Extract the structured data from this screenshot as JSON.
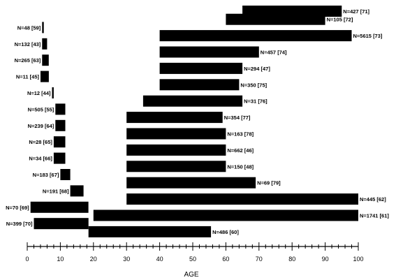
{
  "chart_data": {
    "type": "bar",
    "orientation": "horizontal-range",
    "xlabel": "AGE",
    "xlim": [
      0,
      100
    ],
    "x_ticks": [
      0,
      10,
      20,
      30,
      40,
      50,
      60,
      70,
      80,
      90,
      100
    ],
    "grid": false,
    "bars": [
      {
        "start": 65,
        "end": 95,
        "label": "N=427 [71]",
        "label_side": "right"
      },
      {
        "start": 60,
        "end": 90,
        "label": "N=105 [72]",
        "label_side": "right"
      },
      {
        "start": 4.5,
        "end": 5,
        "label": "N=48 [59]",
        "label_side": "left"
      },
      {
        "start": 40,
        "end": 98,
        "label": "N=5615 [73]",
        "label_side": "right"
      },
      {
        "start": 4.5,
        "end": 6,
        "label": "N=132 [43]",
        "label_side": "left"
      },
      {
        "start": 40,
        "end": 70,
        "label": "N=457 [74]",
        "label_side": "right"
      },
      {
        "start": 4.5,
        "end": 6.5,
        "label": "N=265 [63]",
        "label_side": "left"
      },
      {
        "start": 40,
        "end": 65,
        "label": "N=294 [47]",
        "label_side": "right"
      },
      {
        "start": 4,
        "end": 6.5,
        "label": "N=11 [45]",
        "label_side": "left"
      },
      {
        "start": 40,
        "end": 64,
        "label": "N=350 [75]",
        "label_side": "right"
      },
      {
        "start": 7.5,
        "end": 8,
        "label": "N=12 [44]",
        "label_side": "left"
      },
      {
        "start": 35,
        "end": 65,
        "label": "N=31 [76]",
        "label_side": "right"
      },
      {
        "start": 8.5,
        "end": 11.5,
        "label": "N=505 [55]",
        "label_side": "left"
      },
      {
        "start": 30,
        "end": 59,
        "label": "N=354 [77]",
        "label_side": "right"
      },
      {
        "start": 8.5,
        "end": 11.5,
        "label": "N=239 [64]",
        "label_side": "left"
      },
      {
        "start": 30,
        "end": 60,
        "label": "N=163 [78]",
        "label_side": "right"
      },
      {
        "start": 8,
        "end": 11.5,
        "label": "N=28 [65]",
        "label_side": "left"
      },
      {
        "start": 30,
        "end": 60,
        "label": "N=662 [46]",
        "label_side": "right"
      },
      {
        "start": 8,
        "end": 11.5,
        "label": "N=34 [66]",
        "label_side": "left"
      },
      {
        "start": 30,
        "end": 60,
        "label": "N=150 [48]",
        "label_side": "right"
      },
      {
        "start": 10,
        "end": 13,
        "label": "N=183 [67]",
        "label_side": "left"
      },
      {
        "start": 30,
        "end": 69,
        "label": "N=69 [79]",
        "label_side": "right"
      },
      {
        "start": 13,
        "end": 17,
        "label": "N=191 [68]",
        "label_side": "left"
      },
      {
        "start": 30,
        "end": 100,
        "label": "N=445 [62]",
        "label_side": "right"
      },
      {
        "start": 1,
        "end": 18.5,
        "label": "N=70 [69]",
        "label_side": "left"
      },
      {
        "start": 20,
        "end": 100,
        "label": "N=1741 [61]",
        "label_side": "right"
      },
      {
        "start": 2,
        "end": 18.5,
        "label": "N=399 [70]",
        "label_side": "left"
      },
      {
        "start": 18.5,
        "end": 55.5,
        "label": "N=486 [60]",
        "label_side": "right"
      }
    ]
  }
}
